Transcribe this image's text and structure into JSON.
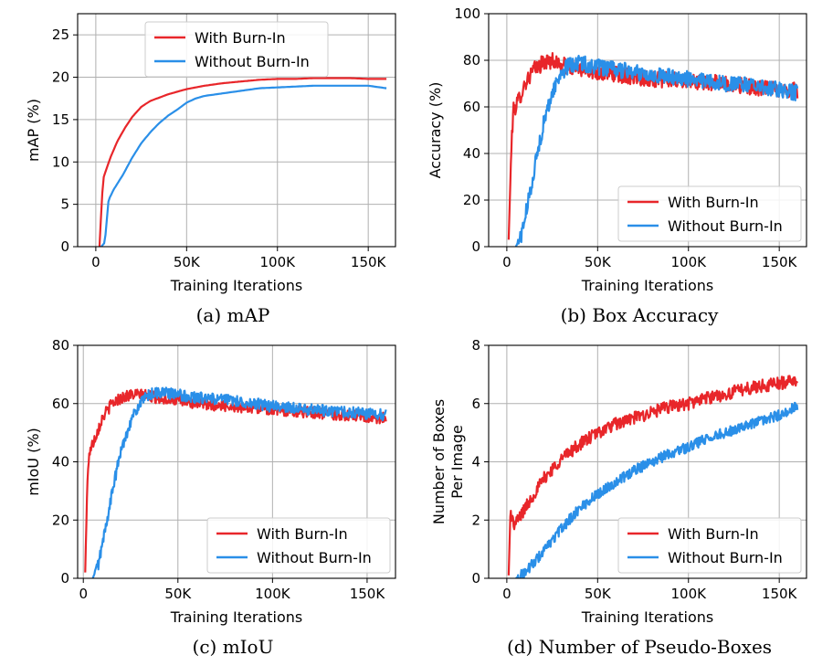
{
  "colors": {
    "with_burn_in": "#e8262a",
    "without_burn_in": "#2a8fe8"
  },
  "chart_data": [
    {
      "id": "a",
      "type": "line",
      "caption": "(a) mAP",
      "xlabel": "Training Iterations",
      "ylabel": "mAP (%)",
      "xlim": [
        -10000,
        165000
      ],
      "ylim": [
        0,
        27.5
      ],
      "xticks": [
        0,
        50000,
        100000,
        150000
      ],
      "xtick_labels": [
        "0",
        "50K",
        "100K",
        "150K"
      ],
      "yticks": [
        0,
        5,
        10,
        15,
        20,
        25
      ],
      "ytick_labels": [
        "0",
        "5",
        "10",
        "15",
        "20",
        "25"
      ],
      "grid": true,
      "legend": "top-center",
      "series": [
        {
          "name": "With Burn-In",
          "color_key": "with_burn_in",
          "noise": 0.0,
          "points": [
            [
              2000,
              0
            ],
            [
              4000,
              8
            ],
            [
              8000,
              10.5
            ],
            [
              12000,
              12.5
            ],
            [
              16000,
              14
            ],
            [
              20000,
              15.3
            ],
            [
              25000,
              16.5
            ],
            [
              30000,
              17.2
            ],
            [
              40000,
              18
            ],
            [
              50000,
              18.6
            ],
            [
              60000,
              19
            ],
            [
              70000,
              19.3
            ],
            [
              80000,
              19.5
            ],
            [
              90000,
              19.7
            ],
            [
              100000,
              19.8
            ],
            [
              110000,
              19.8
            ],
            [
              120000,
              19.9
            ],
            [
              130000,
              19.9
            ],
            [
              140000,
              19.9
            ],
            [
              150000,
              19.8
            ],
            [
              160000,
              19.8
            ]
          ]
        },
        {
          "name": "Without Burn-In",
          "color_key": "without_burn_in",
          "noise": 0.0,
          "points": [
            [
              3000,
              0
            ],
            [
              5000,
              0.5
            ],
            [
              7000,
              5.5
            ],
            [
              10000,
              6.8
            ],
            [
              15000,
              8.5
            ],
            [
              20000,
              10.5
            ],
            [
              25000,
              12.2
            ],
            [
              30000,
              13.5
            ],
            [
              35000,
              14.6
            ],
            [
              40000,
              15.5
            ],
            [
              45000,
              16.2
            ],
            [
              50000,
              17
            ],
            [
              55000,
              17.5
            ],
            [
              60000,
              17.8
            ],
            [
              70000,
              18.1
            ],
            [
              80000,
              18.4
            ],
            [
              90000,
              18.7
            ],
            [
              100000,
              18.8
            ],
            [
              110000,
              18.9
            ],
            [
              120000,
              19
            ],
            [
              130000,
              19
            ],
            [
              140000,
              19
            ],
            [
              150000,
              19
            ],
            [
              160000,
              18.7
            ]
          ]
        }
      ]
    },
    {
      "id": "b",
      "type": "line",
      "caption": "(b) Box Accuracy",
      "xlabel": "Training Iterations",
      "ylabel": "Accuracy (%)",
      "xlim": [
        -10000,
        165000
      ],
      "ylim": [
        0,
        100
      ],
      "xticks": [
        0,
        50000,
        100000,
        150000
      ],
      "xtick_labels": [
        "0",
        "50K",
        "100K",
        "150K"
      ],
      "yticks": [
        0,
        20,
        40,
        60,
        80,
        100
      ],
      "ytick_labels": [
        "0",
        "20",
        "40",
        "60",
        "80",
        "100"
      ],
      "grid": true,
      "legend": "lower-right",
      "series": [
        {
          "name": "With Burn-In",
          "color_key": "with_burn_in",
          "noise": 3.5,
          "points": [
            [
              1000,
              3
            ],
            [
              2500,
              42
            ],
            [
              3500,
              58
            ],
            [
              6000,
              62
            ],
            [
              10000,
              70
            ],
            [
              15000,
              76
            ],
            [
              20000,
              79
            ],
            [
              25000,
              80
            ],
            [
              30000,
              78
            ],
            [
              40000,
              76
            ],
            [
              50000,
              75
            ],
            [
              60000,
              74
            ],
            [
              80000,
              72
            ],
            [
              100000,
              71
            ],
            [
              120000,
              70
            ],
            [
              140000,
              68
            ],
            [
              160000,
              67
            ]
          ]
        },
        {
          "name": "Without Burn-In",
          "color_key": "without_burn_in",
          "noise": 3.5,
          "points": [
            [
              5000,
              0
            ],
            [
              8000,
              5
            ],
            [
              12000,
              20
            ],
            [
              16000,
              37
            ],
            [
              20000,
              52
            ],
            [
              25000,
              66
            ],
            [
              30000,
              75
            ],
            [
              35000,
              78
            ],
            [
              40000,
              79
            ],
            [
              50000,
              77
            ],
            [
              60000,
              76
            ],
            [
              80000,
              74
            ],
            [
              100000,
              72
            ],
            [
              120000,
              70
            ],
            [
              140000,
              69
            ],
            [
              160000,
              66
            ]
          ]
        }
      ]
    },
    {
      "id": "c",
      "type": "line",
      "caption": "(c) mIoU",
      "xlabel": "Training Iterations",
      "ylabel": "mIoU (%)",
      "xlim": [
        -3000,
        165000
      ],
      "ylim": [
        0,
        80
      ],
      "xticks": [
        0,
        50000,
        100000,
        150000
      ],
      "xtick_labels": [
        "0",
        "50K",
        "100K",
        "150K"
      ],
      "yticks": [
        0,
        20,
        40,
        60,
        80
      ],
      "ytick_labels": [
        "0",
        "20",
        "40",
        "60",
        "80"
      ],
      "grid": true,
      "legend": "lower-right",
      "series": [
        {
          "name": "With Burn-In",
          "color_key": "with_burn_in",
          "noise": 2.0,
          "points": [
            [
              1000,
              2
            ],
            [
              2000,
              30
            ],
            [
              3000,
              43
            ],
            [
              6000,
              48
            ],
            [
              10000,
              55
            ],
            [
              15000,
              60
            ],
            [
              20000,
              62
            ],
            [
              25000,
              63
            ],
            [
              30000,
              63
            ],
            [
              40000,
              62
            ],
            [
              60000,
              60
            ],
            [
              80000,
              59
            ],
            [
              100000,
              58
            ],
            [
              120000,
              57
            ],
            [
              140000,
              56
            ],
            [
              160000,
              55
            ]
          ]
        },
        {
          "name": "Without Burn-In",
          "color_key": "without_burn_in",
          "noise": 2.0,
          "points": [
            [
              5000,
              0
            ],
            [
              8000,
              5
            ],
            [
              12000,
              18
            ],
            [
              16000,
              32
            ],
            [
              20000,
              44
            ],
            [
              25000,
              54
            ],
            [
              30000,
              60
            ],
            [
              35000,
              63
            ],
            [
              40000,
              64
            ],
            [
              50000,
              63
            ],
            [
              60000,
              62
            ],
            [
              80000,
              61
            ],
            [
              100000,
              59
            ],
            [
              120000,
              58
            ],
            [
              140000,
              57
            ],
            [
              160000,
              56
            ]
          ]
        }
      ]
    },
    {
      "id": "d",
      "type": "line",
      "caption": "(d) Number of Pseudo-Boxes",
      "xlabel": "Training Iterations",
      "ylabel_lines": [
        "Number of Boxes",
        "Per Image"
      ],
      "xlim": [
        -10000,
        165000
      ],
      "ylim": [
        0,
        8
      ],
      "xticks": [
        0,
        50000,
        100000,
        150000
      ],
      "xtick_labels": [
        "0",
        "50K",
        "100K",
        "150K"
      ],
      "yticks": [
        0,
        2,
        4,
        6,
        8
      ],
      "ytick_labels": [
        "0",
        "2",
        "4",
        "6",
        "8"
      ],
      "grid": true,
      "legend": "lower-right",
      "series": [
        {
          "name": "With Burn-In",
          "color_key": "with_burn_in",
          "noise": 0.22,
          "points": [
            [
              1000,
              0.1
            ],
            [
              2000,
              2.3
            ],
            [
              4000,
              1.8
            ],
            [
              10000,
              2.4
            ],
            [
              20000,
              3.4
            ],
            [
              30000,
              4.1
            ],
            [
              40000,
              4.6
            ],
            [
              50000,
              5.0
            ],
            [
              60000,
              5.3
            ],
            [
              70000,
              5.5
            ],
            [
              80000,
              5.7
            ],
            [
              90000,
              5.9
            ],
            [
              100000,
              6.0
            ],
            [
              110000,
              6.2
            ],
            [
              120000,
              6.3
            ],
            [
              130000,
              6.5
            ],
            [
              140000,
              6.6
            ],
            [
              150000,
              6.7
            ],
            [
              160000,
              6.8
            ]
          ]
        },
        {
          "name": "Without Burn-In",
          "color_key": "without_burn_in",
          "noise": 0.18,
          "points": [
            [
              5000,
              0
            ],
            [
              10000,
              0.2
            ],
            [
              20000,
              0.9
            ],
            [
              30000,
              1.7
            ],
            [
              40000,
              2.4
            ],
            [
              50000,
              2.9
            ],
            [
              60000,
              3.3
            ],
            [
              70000,
              3.7
            ],
            [
              80000,
              4.0
            ],
            [
              90000,
              4.3
            ],
            [
              100000,
              4.5
            ],
            [
              110000,
              4.8
            ],
            [
              120000,
              5.0
            ],
            [
              130000,
              5.2
            ],
            [
              140000,
              5.4
            ],
            [
              150000,
              5.6
            ],
            [
              160000,
              5.9
            ]
          ]
        }
      ]
    }
  ]
}
